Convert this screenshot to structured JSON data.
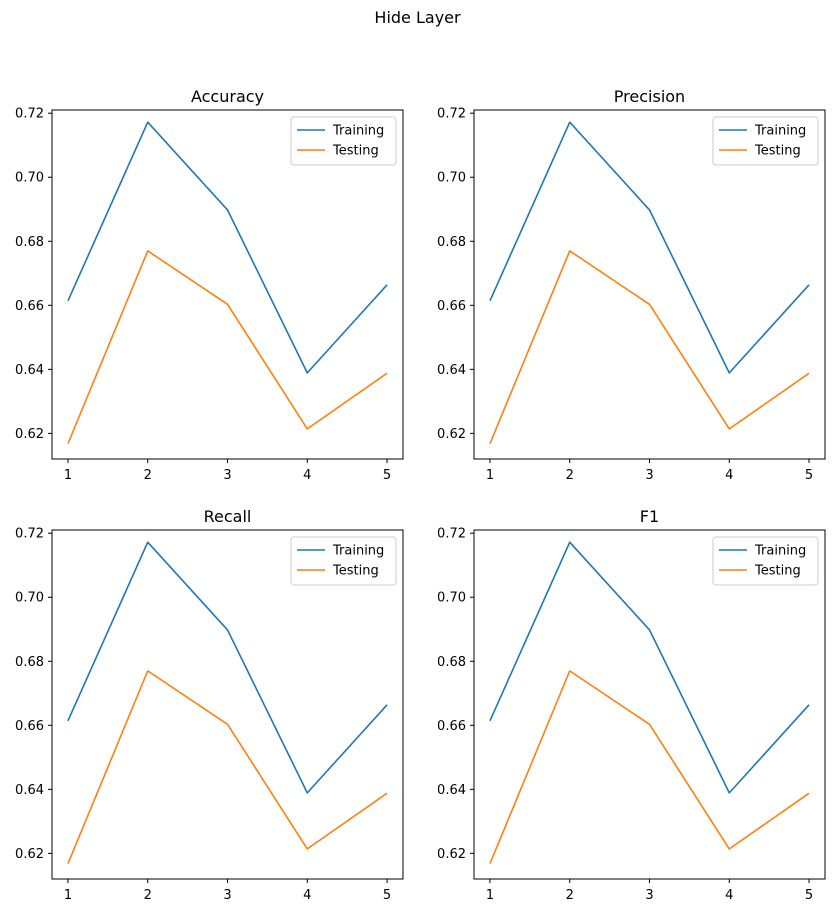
{
  "figure": {
    "title": "Hide Layer"
  },
  "chart_data": [
    {
      "type": "line",
      "title": "Accuracy",
      "xlabel": "",
      "ylabel": "",
      "x": [
        1,
        2,
        3,
        4,
        5
      ],
      "xticks": [
        "1",
        "2",
        "3",
        "4",
        "5"
      ],
      "yticks": [
        "0.62",
        "0.64",
        "0.66",
        "0.68",
        "0.70",
        "0.72"
      ],
      "ylim": [
        0.612,
        0.721
      ],
      "legend": "top-right",
      "series": [
        {
          "name": "Training",
          "color": "#1f77b4",
          "values": [
            0.6614,
            0.7172,
            0.6898,
            0.6389,
            0.6664
          ]
        },
        {
          "name": "Testing",
          "color": "#ff7f0e",
          "values": [
            0.6168,
            0.677,
            0.6603,
            0.6214,
            0.6388
          ]
        }
      ]
    },
    {
      "type": "line",
      "title": "Precision",
      "xlabel": "",
      "ylabel": "",
      "x": [
        1,
        2,
        3,
        4,
        5
      ],
      "xticks": [
        "1",
        "2",
        "3",
        "4",
        "5"
      ],
      "yticks": [
        "0.62",
        "0.64",
        "0.66",
        "0.68",
        "0.70",
        "0.72"
      ],
      "ylim": [
        0.612,
        0.721
      ],
      "legend": "top-right",
      "series": [
        {
          "name": "Training",
          "color": "#1f77b4",
          "values": [
            0.6614,
            0.7172,
            0.6898,
            0.6389,
            0.6664
          ]
        },
        {
          "name": "Testing",
          "color": "#ff7f0e",
          "values": [
            0.6168,
            0.677,
            0.6603,
            0.6214,
            0.6388
          ]
        }
      ]
    },
    {
      "type": "line",
      "title": "Recall",
      "xlabel": "",
      "ylabel": "",
      "x": [
        1,
        2,
        3,
        4,
        5
      ],
      "xticks": [
        "1",
        "2",
        "3",
        "4",
        "5"
      ],
      "yticks": [
        "0.62",
        "0.64",
        "0.66",
        "0.68",
        "0.70",
        "0.72"
      ],
      "ylim": [
        0.612,
        0.721
      ],
      "legend": "top-right",
      "series": [
        {
          "name": "Training",
          "color": "#1f77b4",
          "values": [
            0.6614,
            0.7172,
            0.6898,
            0.6389,
            0.6664
          ]
        },
        {
          "name": "Testing",
          "color": "#ff7f0e",
          "values": [
            0.6168,
            0.677,
            0.6603,
            0.6214,
            0.6388
          ]
        }
      ]
    },
    {
      "type": "line",
      "title": "F1",
      "xlabel": "",
      "ylabel": "",
      "x": [
        1,
        2,
        3,
        4,
        5
      ],
      "xticks": [
        "1",
        "2",
        "3",
        "4",
        "5"
      ],
      "yticks": [
        "0.62",
        "0.64",
        "0.66",
        "0.68",
        "0.70",
        "0.72"
      ],
      "ylim": [
        0.612,
        0.721
      ],
      "legend": "top-right",
      "series": [
        {
          "name": "Training",
          "color": "#1f77b4",
          "values": [
            0.6614,
            0.7172,
            0.6898,
            0.6389,
            0.6664
          ]
        },
        {
          "name": "Testing",
          "color": "#ff7f0e",
          "values": [
            0.6168,
            0.677,
            0.6603,
            0.6214,
            0.6388
          ]
        }
      ]
    }
  ]
}
